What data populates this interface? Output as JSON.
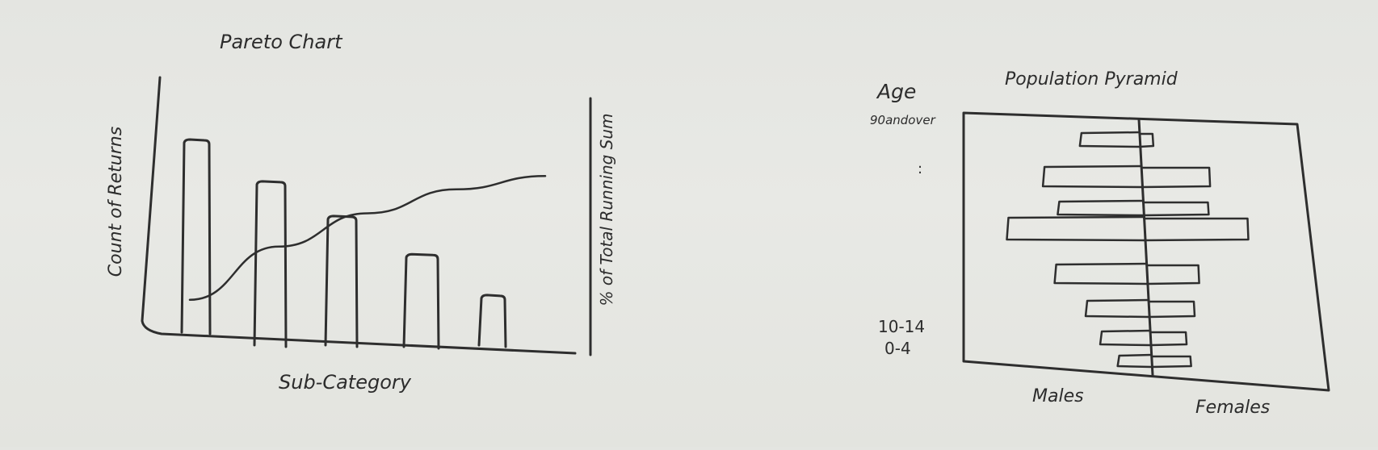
{
  "colors": {
    "paper": "#e6e7e3",
    "ink": "#2e2e2e"
  },
  "chart_data": [
    {
      "type": "bar",
      "title": "Pareto Chart",
      "xlabel": "Sub-Category",
      "ylabel": "Count of Returns",
      "y2label": "% of Total Running Sum",
      "sketch": true,
      "values": [
        10,
        8.5,
        6.7,
        4.8,
        2.6
      ],
      "line": [
        0.05,
        0.45,
        0.7,
        0.88,
        0.98
      ],
      "ylim": [
        0,
        11
      ]
    },
    {
      "type": "bar",
      "title": "Population Pyramid",
      "ylabel": "Age",
      "categories_top": "90andover",
      "ellipsis": ":",
      "categories_bottom": [
        "10-14",
        "0-4"
      ],
      "left_label": "Males",
      "right_label": "Females",
      "sketch": true,
      "males": [
        1.8,
        3.0,
        2.6,
        4.2,
        2.8,
        1.9,
        1.5,
        1.0
      ],
      "females": [
        0.4,
        2.1,
        2.0,
        3.2,
        1.6,
        1.4,
        1.1,
        1.2
      ]
    }
  ]
}
